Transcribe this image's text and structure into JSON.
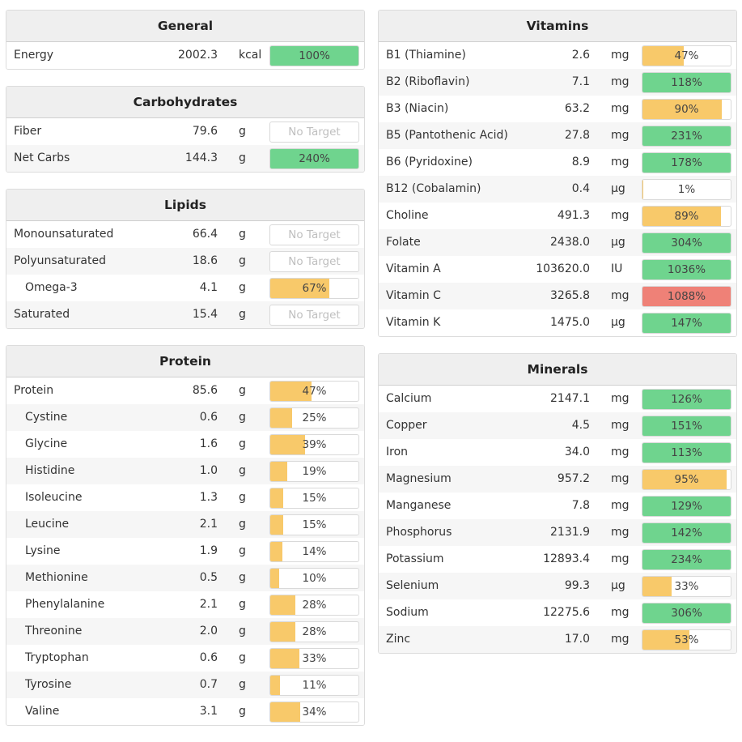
{
  "colors": {
    "yellow": "#f8c96a",
    "green": "#6fd48e",
    "red": "#ef8177"
  },
  "left_panels": [
    {
      "id": "general",
      "title": "General",
      "rows": [
        {
          "name": "Energy",
          "amount": "2002.3",
          "unit": "kcal",
          "label": "100%",
          "percent": 100,
          "color": "green"
        }
      ]
    },
    {
      "id": "carbohydrates",
      "title": "Carbohydrates",
      "rows": [
        {
          "name": "Fiber",
          "amount": "79.6",
          "unit": "g",
          "label": "No Target",
          "percent": null,
          "color": "none"
        },
        {
          "name": "Net Carbs",
          "amount": "144.3",
          "unit": "g",
          "label": "240%",
          "percent": 240,
          "color": "green"
        }
      ]
    },
    {
      "id": "lipids",
      "title": "Lipids",
      "rows": [
        {
          "name": "Monounsaturated",
          "amount": "66.4",
          "unit": "g",
          "label": "No Target",
          "percent": null,
          "color": "none"
        },
        {
          "name": "Polyunsaturated",
          "amount": "18.6",
          "unit": "g",
          "label": "No Target",
          "percent": null,
          "color": "none"
        },
        {
          "name": "Omega-3",
          "amount": "4.1",
          "unit": "g",
          "label": "67%",
          "percent": 67,
          "color": "yellow",
          "sub": true
        },
        {
          "name": "Saturated",
          "amount": "15.4",
          "unit": "g",
          "label": "No Target",
          "percent": null,
          "color": "none"
        }
      ]
    },
    {
      "id": "protein",
      "title": "Protein",
      "rows": [
        {
          "name": "Protein",
          "amount": "85.6",
          "unit": "g",
          "label": "47%",
          "percent": 47,
          "color": "yellow"
        },
        {
          "name": "Cystine",
          "amount": "0.6",
          "unit": "g",
          "label": "25%",
          "percent": 25,
          "color": "yellow",
          "sub": true
        },
        {
          "name": "Glycine",
          "amount": "1.6",
          "unit": "g",
          "label": "39%",
          "percent": 39,
          "color": "yellow",
          "sub": true
        },
        {
          "name": "Histidine",
          "amount": "1.0",
          "unit": "g",
          "label": "19%",
          "percent": 19,
          "color": "yellow",
          "sub": true
        },
        {
          "name": "Isoleucine",
          "amount": "1.3",
          "unit": "g",
          "label": "15%",
          "percent": 15,
          "color": "yellow",
          "sub": true
        },
        {
          "name": "Leucine",
          "amount": "2.1",
          "unit": "g",
          "label": "15%",
          "percent": 15,
          "color": "yellow",
          "sub": true
        },
        {
          "name": "Lysine",
          "amount": "1.9",
          "unit": "g",
          "label": "14%",
          "percent": 14,
          "color": "yellow",
          "sub": true
        },
        {
          "name": "Methionine",
          "amount": "0.5",
          "unit": "g",
          "label": "10%",
          "percent": 10,
          "color": "yellow",
          "sub": true
        },
        {
          "name": "Phenylalanine",
          "amount": "2.1",
          "unit": "g",
          "label": "28%",
          "percent": 28,
          "color": "yellow",
          "sub": true
        },
        {
          "name": "Threonine",
          "amount": "2.0",
          "unit": "g",
          "label": "28%",
          "percent": 28,
          "color": "yellow",
          "sub": true
        },
        {
          "name": "Tryptophan",
          "amount": "0.6",
          "unit": "g",
          "label": "33%",
          "percent": 33,
          "color": "yellow",
          "sub": true
        },
        {
          "name": "Tyrosine",
          "amount": "0.7",
          "unit": "g",
          "label": "11%",
          "percent": 11,
          "color": "yellow",
          "sub": true
        },
        {
          "name": "Valine",
          "amount": "3.1",
          "unit": "g",
          "label": "34%",
          "percent": 34,
          "color": "yellow",
          "sub": true
        }
      ]
    }
  ],
  "right_panels": [
    {
      "id": "vitamins",
      "title": "Vitamins",
      "rows": [
        {
          "name": "B1 (Thiamine)",
          "amount": "2.6",
          "unit": "mg",
          "label": "47%",
          "percent": 47,
          "color": "yellow"
        },
        {
          "name": "B2 (Riboflavin)",
          "amount": "7.1",
          "unit": "mg",
          "label": "118%",
          "percent": 118,
          "color": "green"
        },
        {
          "name": "B3 (Niacin)",
          "amount": "63.2",
          "unit": "mg",
          "label": "90%",
          "percent": 90,
          "color": "yellow"
        },
        {
          "name": "B5 (Pantothenic Acid)",
          "amount": "27.8",
          "unit": "mg",
          "label": "231%",
          "percent": 231,
          "color": "green"
        },
        {
          "name": "B6 (Pyridoxine)",
          "amount": "8.9",
          "unit": "mg",
          "label": "178%",
          "percent": 178,
          "color": "green"
        },
        {
          "name": "B12 (Cobalamin)",
          "amount": "0.4",
          "unit": "µg",
          "label": "1%",
          "percent": 1,
          "color": "yellow"
        },
        {
          "name": "Choline",
          "amount": "491.3",
          "unit": "mg",
          "label": "89%",
          "percent": 89,
          "color": "yellow"
        },
        {
          "name": "Folate",
          "amount": "2438.0",
          "unit": "µg",
          "label": "304%",
          "percent": 304,
          "color": "green"
        },
        {
          "name": "Vitamin A",
          "amount": "103620.0",
          "unit": "IU",
          "label": "1036%",
          "percent": 1036,
          "color": "green"
        },
        {
          "name": "Vitamin C",
          "amount": "3265.8",
          "unit": "mg",
          "label": "1088%",
          "percent": 1088,
          "color": "red"
        },
        {
          "name": "Vitamin K",
          "amount": "1475.0",
          "unit": "µg",
          "label": "147%",
          "percent": 147,
          "color": "green"
        }
      ]
    },
    {
      "id": "minerals",
      "title": "Minerals",
      "rows": [
        {
          "name": "Calcium",
          "amount": "2147.1",
          "unit": "mg",
          "label": "126%",
          "percent": 126,
          "color": "green"
        },
        {
          "name": "Copper",
          "amount": "4.5",
          "unit": "mg",
          "label": "151%",
          "percent": 151,
          "color": "green"
        },
        {
          "name": "Iron",
          "amount": "34.0",
          "unit": "mg",
          "label": "113%",
          "percent": 113,
          "color": "green"
        },
        {
          "name": "Magnesium",
          "amount": "957.2",
          "unit": "mg",
          "label": "95%",
          "percent": 95,
          "color": "yellow"
        },
        {
          "name": "Manganese",
          "amount": "7.8",
          "unit": "mg",
          "label": "129%",
          "percent": 129,
          "color": "green"
        },
        {
          "name": "Phosphorus",
          "amount": "2131.9",
          "unit": "mg",
          "label": "142%",
          "percent": 142,
          "color": "green"
        },
        {
          "name": "Potassium",
          "amount": "12893.4",
          "unit": "mg",
          "label": "234%",
          "percent": 234,
          "color": "green"
        },
        {
          "name": "Selenium",
          "amount": "99.3",
          "unit": "µg",
          "label": "33%",
          "percent": 33,
          "color": "yellow"
        },
        {
          "name": "Sodium",
          "amount": "12275.6",
          "unit": "mg",
          "label": "306%",
          "percent": 306,
          "color": "green"
        },
        {
          "name": "Zinc",
          "amount": "17.0",
          "unit": "mg",
          "label": "53%",
          "percent": 53,
          "color": "yellow"
        }
      ]
    }
  ]
}
